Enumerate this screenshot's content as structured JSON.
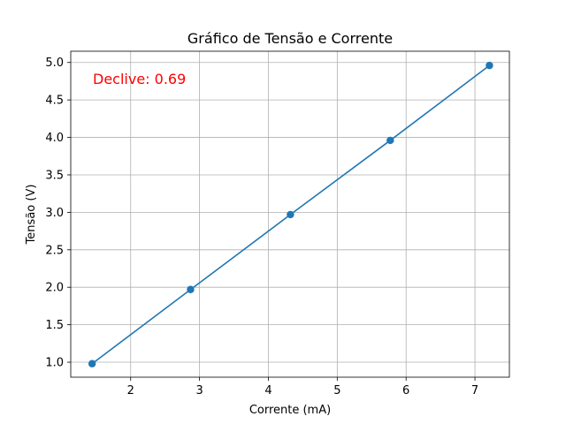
{
  "chart_data": {
    "type": "line",
    "title": "Gráfico de Tensão e Corrente",
    "xlabel": "Corrente (mA)",
    "ylabel": "Tensão (V)",
    "xlim": [
      1.13,
      7.5
    ],
    "ylim": [
      0.8,
      5.15
    ],
    "xticks": [
      2,
      3,
      4,
      5,
      6,
      7
    ],
    "yticks": [
      1.0,
      1.5,
      2.0,
      2.5,
      3.0,
      3.5,
      4.0,
      4.5,
      5.0
    ],
    "xtick_labels": [
      "2",
      "3",
      "4",
      "5",
      "6",
      "7"
    ],
    "ytick_labels": [
      "1.0",
      "1.5",
      "2.0",
      "2.5",
      "3.0",
      "3.5",
      "4.0",
      "4.5",
      "5.0"
    ],
    "grid": true,
    "series": [
      {
        "x": [
          1.44,
          2.87,
          4.32,
          5.77,
          7.21
        ],
        "y": [
          0.98,
          1.97,
          2.97,
          3.96,
          4.96
        ],
        "color": "#1f77b4",
        "marker": "circle"
      }
    ],
    "annotation": {
      "text": "Declive: 0.69",
      "color": "#ff0000",
      "position": "top-left"
    }
  }
}
